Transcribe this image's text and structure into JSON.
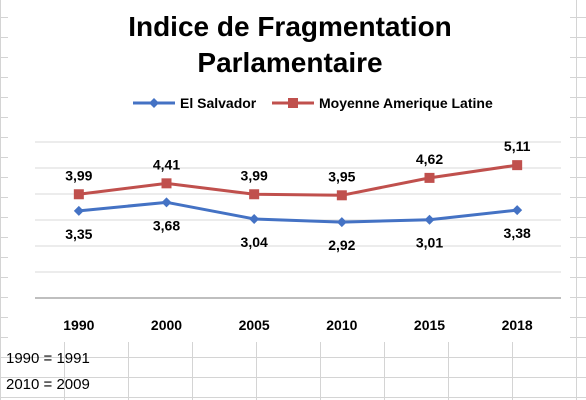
{
  "chart_data": {
    "type": "line",
    "title_lines": [
      "Indice de Fragmentation",
      "Parlamentaire"
    ],
    "categories": [
      "1990",
      "2000",
      "2005",
      "2010",
      "2015",
      "2018"
    ],
    "series": [
      {
        "name": "El Salvador",
        "values": [
          3.35,
          3.68,
          3.04,
          2.92,
          3.01,
          3.38
        ],
        "labels": [
          "3,35",
          "3,68",
          "3,04",
          "2,92",
          "3,01",
          "3,38"
        ],
        "label_position": "below",
        "color": "#4472C4",
        "marker": "diamond"
      },
      {
        "name": "Moyenne Amerique Latine",
        "values": [
          3.99,
          4.41,
          3.99,
          3.95,
          4.62,
          5.11
        ],
        "labels": [
          "3,99",
          "4,41",
          "3,99",
          "3,95",
          "4,62",
          "5,11"
        ],
        "label_position": "above",
        "color": "#C0504D",
        "marker": "square"
      }
    ],
    "xlabel": "",
    "ylabel": "",
    "ylim": [
      0,
      6
    ],
    "y_axis_visible": false,
    "grid": true,
    "legend_position": "top"
  },
  "notes": [
    "1990 = 1991",
    "2010 = 2009"
  ]
}
